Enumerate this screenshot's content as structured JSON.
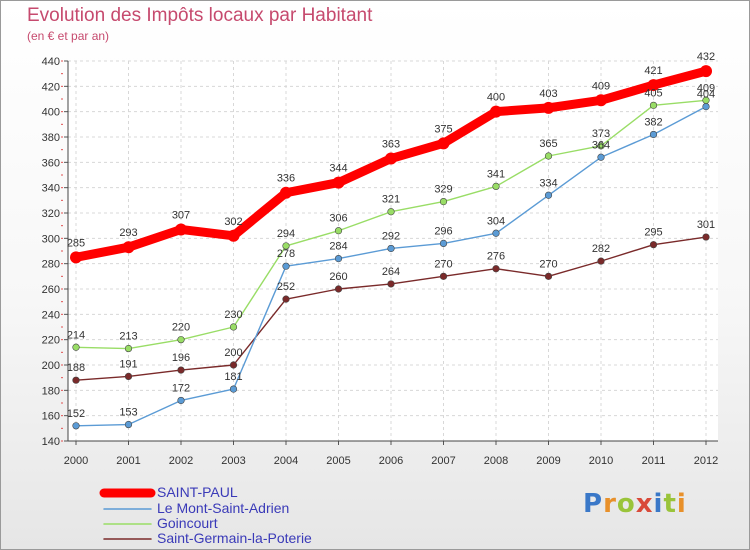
{
  "chart_data": {
    "type": "line",
    "title": "Evolution des Impôts locaux par Habitant",
    "subtitle": "(en € et par an)",
    "xlabel": "",
    "ylabel": "",
    "x": [
      "2000",
      "2001",
      "2002",
      "2003",
      "2004",
      "2005",
      "2006",
      "2007",
      "2008",
      "2009",
      "2010",
      "2011",
      "2012"
    ],
    "ylim": [
      140,
      440
    ],
    "yticks": [
      "140",
      "160",
      "180",
      "200",
      "220",
      "240",
      "260",
      "280",
      "300",
      "320",
      "340",
      "360",
      "380",
      "400",
      "420",
      "440"
    ],
    "grid": true,
    "legend_position": "bottom-left",
    "series": [
      {
        "name": "SAINT-PAUL",
        "color": "#ff0000",
        "values": [
          285,
          293,
          307,
          302,
          336,
          344,
          363,
          375,
          400,
          403,
          409,
          421,
          432
        ]
      },
      {
        "name": "Le Mont-Saint-Adrien",
        "color": "#5b9bd5",
        "values": [
          152,
          153,
          172,
          181,
          278,
          284,
          292,
          296,
          304,
          334,
          364,
          382,
          404
        ]
      },
      {
        "name": "Goincourt",
        "color": "#99dd66",
        "values": [
          214,
          213,
          220,
          230,
          294,
          306,
          321,
          329,
          341,
          365,
          373,
          405,
          409
        ]
      },
      {
        "name": "Saint-Germain-la-Poterie",
        "color": "#7a2a2a",
        "values": [
          188,
          191,
          196,
          200,
          252,
          260,
          264,
          270,
          276,
          270,
          282,
          295,
          301
        ]
      }
    ]
  },
  "brand": {
    "letters": [
      "P",
      "r",
      "o",
      "x",
      "i",
      "t",
      "i"
    ]
  }
}
